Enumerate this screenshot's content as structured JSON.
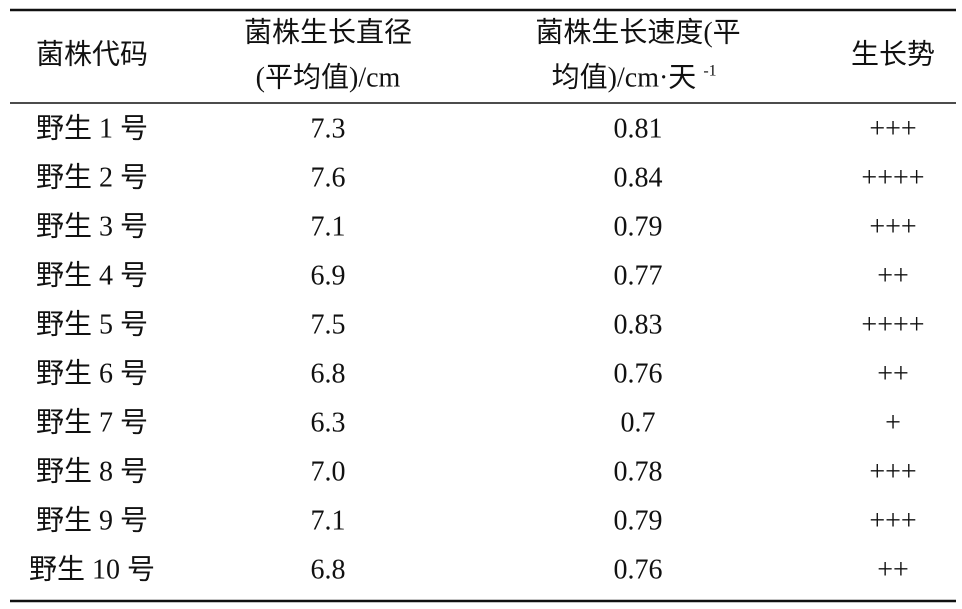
{
  "table": {
    "header": [
      {
        "lines": [
          "菌株代码"
        ]
      },
      {
        "lines": [
          "菌株生长直径",
          "(平均值)/cm"
        ]
      },
      {
        "lines": [
          "菌株生长速度(平",
          "均值)/cm·天"
        ],
        "sup": "-1"
      },
      {
        "lines": [
          "生长势"
        ]
      }
    ],
    "rows": [
      [
        "野生 1 号",
        "7.3",
        "0.81",
        "+++"
      ],
      [
        "野生 2 号",
        "7.6",
        "0.84",
        "++++"
      ],
      [
        "野生 3 号",
        "7.1",
        "0.79",
        "+++"
      ],
      [
        "野生 4 号",
        "6.9",
        "0.77",
        "++"
      ],
      [
        "野生 5 号",
        "7.5",
        "0.83",
        "++++"
      ],
      [
        "野生 6 号",
        "6.8",
        "0.76",
        "++"
      ],
      [
        "野生 7 号",
        "6.3",
        "0.7",
        "+"
      ],
      [
        "野生 8 号",
        "7.0",
        "0.78",
        "+++"
      ],
      [
        "野生 9 号",
        "7.1",
        "0.79",
        "+++"
      ],
      [
        "野生 10 号",
        "6.8",
        "0.76",
        "++"
      ]
    ]
  }
}
